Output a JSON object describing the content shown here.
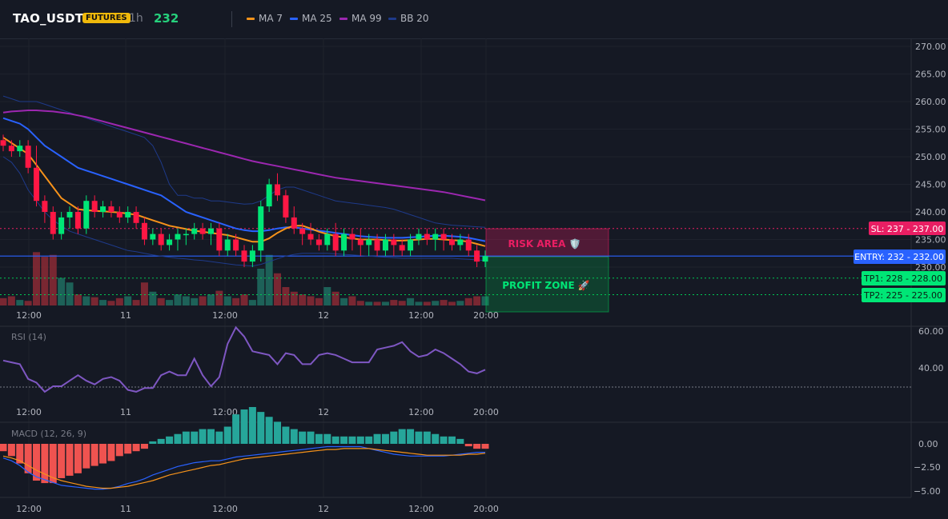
{
  "header": {
    "symbol": "TAO_USDT",
    "badge": "FUTURES",
    "timeframe": "1h",
    "last_price": "232",
    "legend": [
      {
        "label": "MA 7",
        "color": "#f7931a"
      },
      {
        "label": "MA 25",
        "color": "#2962ff"
      },
      {
        "label": "MA 99",
        "color": "#9c27b0"
      },
      {
        "label": "BB 20",
        "color": "#1e3a8a"
      }
    ]
  },
  "colors": {
    "up": "#26a69a",
    "up_bright": "#00e676",
    "down": "#ff1744",
    "entry": "#2962ff",
    "risk": "#e91e63",
    "profit": "#00c853"
  },
  "levels": {
    "sl": {
      "label": "SL: 237 - 237.00",
      "value": 237
    },
    "entry": {
      "label": "ENTRY: 232 - 232.00",
      "value": 232
    },
    "tp1": {
      "label": "TP1: 228 - 228.00",
      "value": 228
    },
    "tp2": {
      "label": "TP2: 225 - 225.00",
      "value": 225
    }
  },
  "zones": {
    "risk_label": "RISK AREA 🛡️",
    "profit_label": "PROFIT ZONE 🚀"
  },
  "time_labels": [
    "12:00",
    "11",
    "12:00",
    "12",
    "12:00",
    "20:00"
  ],
  "rsi": {
    "title": "RSI (14)",
    "ticks": [
      "60.00",
      "40.00"
    ]
  },
  "macd": {
    "title": "MACD (12, 26, 9)",
    "ticks": [
      "0.00",
      "−2.50",
      "−5.00"
    ]
  },
  "chart_data": {
    "type": "candlestick",
    "price_axis": {
      "ticks": [
        270,
        265,
        260,
        255,
        250,
        245,
        240,
        235,
        230
      ],
      "range": [
        228,
        271
      ]
    },
    "candles": [
      [
        253,
        254,
        251,
        252
      ],
      [
        252,
        253,
        250,
        251
      ],
      [
        251,
        253,
        250,
        252
      ],
      [
        252,
        253,
        247,
        248
      ],
      [
        248,
        252,
        241,
        242
      ],
      [
        242,
        243,
        238,
        240
      ],
      [
        240,
        241,
        235,
        236
      ],
      [
        236,
        240,
        235,
        239
      ],
      [
        239,
        241,
        237,
        240
      ],
      [
        240,
        241,
        236,
        237
      ],
      [
        237,
        243,
        236,
        242
      ],
      [
        242,
        243,
        239,
        240
      ],
      [
        240,
        242,
        239,
        241
      ],
      [
        241,
        242,
        239,
        240
      ],
      [
        240,
        241,
        238,
        239
      ],
      [
        239,
        241,
        238,
        240
      ],
      [
        240,
        241,
        237,
        238
      ],
      [
        238,
        239,
        234,
        235
      ],
      [
        235,
        237,
        234,
        236
      ],
      [
        236,
        237,
        233,
        234
      ],
      [
        234,
        236,
        233,
        235
      ],
      [
        235,
        237,
        233,
        236
      ],
      [
        236,
        237,
        234,
        236
      ],
      [
        236,
        238,
        235,
        237
      ],
      [
        237,
        238,
        235,
        236
      ],
      [
        236,
        238,
        234,
        237
      ],
      [
        237,
        238,
        232,
        233
      ],
      [
        233,
        236,
        232,
        235
      ],
      [
        235,
        236,
        232,
        233
      ],
      [
        233,
        234,
        230,
        231
      ],
      [
        231,
        234,
        230,
        233
      ],
      [
        233,
        242,
        231,
        241
      ],
      [
        241,
        246,
        240,
        245
      ],
      [
        245,
        247,
        242,
        243
      ],
      [
        243,
        244,
        238,
        239
      ],
      [
        239,
        241,
        236,
        237
      ],
      [
        237,
        238,
        234,
        236
      ],
      [
        236,
        238,
        234,
        235
      ],
      [
        235,
        236,
        233,
        234
      ],
      [
        234,
        237,
        233,
        236
      ],
      [
        236,
        238,
        232,
        233
      ],
      [
        233,
        237,
        232,
        236
      ],
      [
        236,
        237,
        233,
        235
      ],
      [
        235,
        237,
        232,
        234
      ],
      [
        234,
        236,
        232,
        235
      ],
      [
        235,
        236,
        232,
        233
      ],
      [
        233,
        236,
        232,
        235
      ],
      [
        235,
        236,
        232,
        234
      ],
      [
        234,
        235,
        232,
        233
      ],
      [
        233,
        236,
        232,
        235
      ],
      [
        235,
        237,
        234,
        236
      ],
      [
        236,
        237,
        234,
        235
      ],
      [
        235,
        237,
        233,
        236
      ],
      [
        236,
        237,
        233,
        235
      ],
      [
        235,
        236,
        233,
        234
      ],
      [
        234,
        236,
        233,
        235
      ],
      [
        235,
        236,
        232,
        233
      ],
      [
        233,
        234,
        230,
        231
      ],
      [
        231,
        233,
        230,
        232
      ]
    ],
    "ma7": [
      253.5,
      252.5,
      251.5,
      250.5,
      248.5,
      246.5,
      244.5,
      242.5,
      241.5,
      240.5,
      240.3,
      240.2,
      240.1,
      240,
      239.9,
      239.7,
      239.5,
      239,
      238.5,
      238,
      237.5,
      237.2,
      236.9,
      236.6,
      236.4,
      236.2,
      236,
      235.8,
      235.4,
      235,
      234.6,
      234.6,
      235.2,
      236.2,
      237,
      237.5,
      237.5,
      237,
      236.4,
      236,
      235.6,
      235.4,
      235.2,
      235,
      235,
      235,
      234.9,
      234.8,
      234.8,
      234.9,
      235,
      235.1,
      235.1,
      235,
      234.9,
      234.8,
      234.6,
      234.2,
      233.8
    ],
    "ma25": [
      257,
      256.5,
      256,
      255,
      253.5,
      252,
      251,
      250,
      249,
      248,
      247.5,
      247,
      246.5,
      246,
      245.5,
      245,
      244.5,
      244,
      243.5,
      243,
      242,
      241,
      240,
      239.5,
      239,
      238.5,
      238,
      237.5,
      237,
      236.7,
      236.5,
      236.5,
      236.7,
      237,
      237.2,
      237.2,
      237,
      236.8,
      236.6,
      236.4,
      236.2,
      236,
      235.8,
      235.6,
      235.5,
      235.4,
      235.3,
      235.3,
      235.3,
      235.4,
      235.5,
      235.6,
      235.7,
      235.7,
      235.6,
      235.5,
      235.3,
      235,
      234.7
    ],
    "ma99": [
      258,
      258.2,
      258.3,
      258.4,
      258.4,
      258.3,
      258.2,
      258,
      257.8,
      257.5,
      257.2,
      256.8,
      256.4,
      256,
      255.6,
      255.2,
      254.8,
      254.4,
      254,
      253.6,
      253.2,
      252.8,
      252.4,
      252,
      251.6,
      251.2,
      250.8,
      250.4,
      250,
      249.6,
      249.2,
      248.9,
      248.6,
      248.3,
      248,
      247.7,
      247.4,
      247.1,
      246.8,
      246.5,
      246.2,
      246,
      245.8,
      245.6,
      245.4,
      245.2,
      245,
      244.8,
      244.6,
      244.4,
      244.2,
      244,
      243.8,
      243.6,
      243.3,
      243,
      242.7,
      242.4,
      242.1
    ],
    "bb_upper": [
      261,
      260.5,
      260,
      260,
      260,
      259.5,
      259,
      258.5,
      258,
      257.5,
      257,
      256.5,
      256,
      255.5,
      255,
      254.5,
      254,
      253.5,
      252,
      249,
      245,
      243,
      243,
      242.5,
      242.5,
      242,
      242,
      241.8,
      241.6,
      241.4,
      241.5,
      242,
      243,
      244,
      244.5,
      244.5,
      244,
      243.5,
      243,
      242.5,
      242,
      241.8,
      241.6,
      241.4,
      241.2,
      241,
      240.8,
      240.5,
      240,
      239.5,
      239,
      238.5,
      238,
      237.8,
      237.6,
      237.5,
      237.4,
      237.3,
      237.2
    ],
    "bb_lower": [
      250,
      249,
      247,
      244,
      242,
      240,
      238.5,
      237.5,
      236.5,
      236,
      235.5,
      235,
      234.5,
      234,
      233.5,
      233,
      232.8,
      232.5,
      232.2,
      232,
      231.8,
      231.6,
      231.5,
      231.3,
      231.2,
      231,
      230.8,
      230.6,
      230.4,
      230.3,
      230.2,
      230.5,
      231,
      231.5,
      232,
      232.3,
      232.5,
      232.5,
      232.5,
      232.5,
      232.4,
      232.3,
      232.2,
      232.1,
      232,
      231.9,
      231.8,
      231.7,
      231.6,
      231.6,
      231.6,
      231.6,
      231.6,
      231.6,
      231.6,
      231.5,
      231.4,
      231.3,
      231.2
    ],
    "volume": [
      8,
      10,
      6,
      5,
      58,
      53,
      55,
      30,
      25,
      12,
      10,
      9,
      6,
      5,
      8,
      10,
      6,
      25,
      15,
      8,
      6,
      12,
      10,
      8,
      10,
      12,
      16,
      10,
      8,
      12,
      6,
      40,
      55,
      35,
      20,
      15,
      12,
      10,
      8,
      20,
      15,
      8,
      10,
      5,
      4,
      4,
      4,
      6,
      5,
      8,
      4,
      4,
      5,
      6,
      4,
      5,
      8,
      10,
      10
    ],
    "rsi": [
      44,
      43,
      42,
      34,
      32,
      27,
      30,
      30,
      33,
      36,
      33,
      31,
      34,
      35,
      33,
      28,
      27,
      29,
      29,
      36,
      38,
      36,
      36,
      45,
      36,
      30,
      35,
      53,
      62,
      57,
      49,
      48,
      47,
      42,
      48,
      47,
      42,
      42,
      47,
      48,
      47,
      45,
      43,
      43,
      43,
      50,
      51,
      52,
      54,
      49,
      46,
      47,
      50,
      48,
      45,
      42,
      38,
      37,
      39
    ],
    "macd_hist": [
      -0.3,
      -0.5,
      -0.8,
      -1.2,
      -1.5,
      -1.6,
      -1.6,
      -1.4,
      -1.3,
      -1.2,
      -1.0,
      -0.9,
      -0.8,
      -0.7,
      -0.5,
      -0.4,
      -0.3,
      -0.2,
      0.1,
      0.2,
      0.3,
      0.4,
      0.5,
      0.5,
      0.6,
      0.6,
      0.5,
      0.7,
      1.2,
      1.4,
      1.5,
      1.3,
      1.1,
      0.9,
      0.7,
      0.6,
      0.5,
      0.5,
      0.4,
      0.4,
      0.3,
      0.3,
      0.3,
      0.3,
      0.3,
      0.4,
      0.4,
      0.5,
      0.6,
      0.6,
      0.5,
      0.5,
      0.4,
      0.3,
      0.3,
      0.2,
      -0.1,
      -0.2,
      -0.2
    ],
    "macd_line": [
      -1.5,
      -1.8,
      -2.3,
      -3,
      -3.5,
      -3.8,
      -4.1,
      -4.4,
      -4.5,
      -4.6,
      -4.7,
      -4.8,
      -4.8,
      -4.7,
      -4.5,
      -4.2,
      -4,
      -3.7,
      -3.3,
      -3,
      -2.7,
      -2.4,
      -2.2,
      -2,
      -1.9,
      -1.8,
      -1.8,
      -1.6,
      -1.4,
      -1.3,
      -1.2,
      -1.1,
      -1.0,
      -0.9,
      -0.8,
      -0.7,
      -0.6,
      -0.5,
      -0.4,
      -0.3,
      -0.3,
      -0.3,
      -0.3,
      -0.3,
      -0.5,
      -0.7,
      -0.9,
      -1.1,
      -1.2,
      -1.3,
      -1.3,
      -1.3,
      -1.3,
      -1.3,
      -1.2,
      -1.1,
      -1.0,
      -0.9,
      -0.9
    ],
    "macd_signal": [
      -1.3,
      -1.5,
      -1.8,
      -2.3,
      -2.8,
      -3.2,
      -3.6,
      -3.9,
      -4.1,
      -4.3,
      -4.5,
      -4.6,
      -4.7,
      -4.7,
      -4.6,
      -4.5,
      -4.3,
      -4.1,
      -3.9,
      -3.6,
      -3.3,
      -3.1,
      -2.9,
      -2.7,
      -2.5,
      -2.3,
      -2.2,
      -2.0,
      -1.8,
      -1.6,
      -1.5,
      -1.4,
      -1.3,
      -1.2,
      -1.1,
      -1.0,
      -0.9,
      -0.8,
      -0.7,
      -0.6,
      -0.6,
      -0.5,
      -0.5,
      -0.5,
      -0.5,
      -0.6,
      -0.7,
      -0.8,
      -0.9,
      -1.0,
      -1.1,
      -1.2,
      -1.2,
      -1.2,
      -1.2,
      -1.2,
      -1.1,
      -1.1,
      -1.0
    ]
  }
}
